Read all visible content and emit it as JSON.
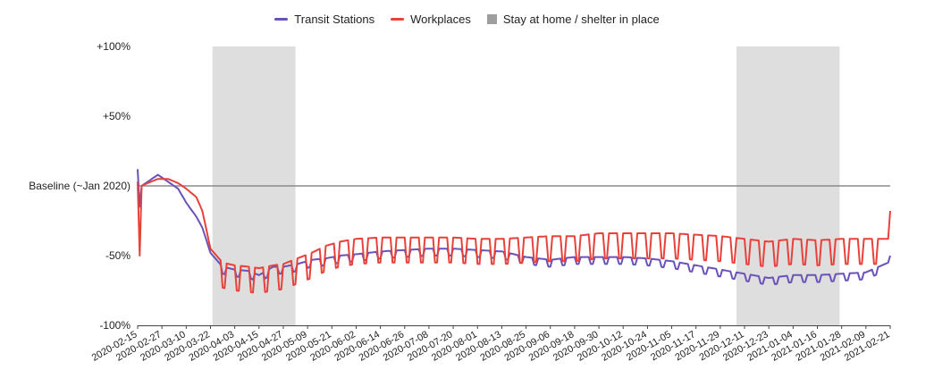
{
  "chart_data": {
    "type": "line",
    "title": "",
    "legend": {
      "placement": "top-center",
      "entries": [
        {
          "label": "Transit Stations",
          "kind": "line",
          "color": "#6a52b8"
        },
        {
          "label": "Workplaces",
          "kind": "line",
          "color": "#e8413a"
        },
        {
          "label": "Stay at home / shelter in place",
          "kind": "box",
          "color": "#9e9e9e"
        }
      ]
    },
    "y_axis": {
      "range": [
        -100,
        100
      ],
      "ticks": [
        {
          "value": 100,
          "label": "+100%"
        },
        {
          "value": 50,
          "label": "+50%"
        },
        {
          "value": 0,
          "label": "Baseline (~Jan 2020)"
        },
        {
          "value": -50,
          "label": "-50%"
        },
        {
          "value": -100,
          "label": "-100%"
        }
      ],
      "grid": false,
      "baseline_line": true
    },
    "x_axis": {
      "start": "2020-02-15",
      "end": "2021-02-21",
      "tick_labels": [
        "2020-02-15",
        "2020-02-27",
        "2020-03-10",
        "2020-03-22",
        "2020-04-03",
        "2020-04-15",
        "2020-04-27",
        "2020-05-09",
        "2020-05-21",
        "2020-06-02",
        "2020-06-14",
        "2020-06-26",
        "2020-07-08",
        "2020-07-20",
        "2020-08-01",
        "2020-08-13",
        "2020-08-25",
        "2020-09-06",
        "2020-09-18",
        "2020-09-30",
        "2020-10-12",
        "2020-10-24",
        "2020-11-05",
        "2020-11-17",
        "2020-11-29",
        "2020-12-11",
        "2020-12-23",
        "2021-01-04",
        "2021-01-16",
        "2021-01-28",
        "2021-02-09",
        "2021-02-21"
      ]
    },
    "shaded_periods": [
      {
        "label": "Stay at home / shelter in place",
        "start": "2020-03-23",
        "end": "2020-05-03"
      },
      {
        "label": "Stay at home / shelter in place",
        "start": "2020-12-07",
        "end": "2021-01-27"
      }
    ],
    "series": [
      {
        "name": "Transit Stations",
        "color": "#6a52b8",
        "weekly_pattern_note_omitted": true,
        "points": [
          [
            "2020-02-15",
            12
          ],
          [
            "2020-02-16",
            -15
          ],
          [
            "2020-02-17",
            0
          ],
          [
            "2020-02-20",
            3
          ],
          [
            "2020-02-25",
            8
          ],
          [
            "2020-03-01",
            3
          ],
          [
            "2020-03-06",
            -2
          ],
          [
            "2020-03-10",
            -12
          ],
          [
            "2020-03-15",
            -22
          ],
          [
            "2020-03-18",
            -30
          ],
          [
            "2020-03-22",
            -48
          ],
          [
            "2020-03-28",
            -58
          ],
          [
            "2020-04-03",
            -60
          ],
          [
            "2020-04-10",
            -61
          ],
          [
            "2020-04-15",
            -64
          ],
          [
            "2020-04-22",
            -58
          ],
          [
            "2020-04-27",
            -58
          ],
          [
            "2020-05-04",
            -56
          ],
          [
            "2020-05-11",
            -53
          ],
          [
            "2020-05-18",
            -52
          ],
          [
            "2020-05-25",
            -50
          ],
          [
            "2020-06-02",
            -49
          ],
          [
            "2020-06-14",
            -47
          ],
          [
            "2020-06-26",
            -46
          ],
          [
            "2020-07-08",
            -45
          ],
          [
            "2020-07-20",
            -45
          ],
          [
            "2020-08-01",
            -46
          ],
          [
            "2020-08-13",
            -47
          ],
          [
            "2020-08-25",
            -51
          ],
          [
            "2020-09-06",
            -53
          ],
          [
            "2020-09-18",
            -51
          ],
          [
            "2020-09-30",
            -51
          ],
          [
            "2020-10-12",
            -51
          ],
          [
            "2020-10-24",
            -52
          ],
          [
            "2020-11-05",
            -54
          ],
          [
            "2020-11-17",
            -57
          ],
          [
            "2020-11-29",
            -60
          ],
          [
            "2020-12-11",
            -63
          ],
          [
            "2020-12-23",
            -66
          ],
          [
            "2021-01-04",
            -64
          ],
          [
            "2021-01-16",
            -64
          ],
          [
            "2021-01-28",
            -63
          ],
          [
            "2021-02-09",
            -62
          ],
          [
            "2021-02-20",
            -55
          ],
          [
            "2021-02-21",
            -50
          ]
        ]
      },
      {
        "name": "Workplaces",
        "color": "#e8413a",
        "points": [
          [
            "2020-02-15",
            3
          ],
          [
            "2020-02-16",
            -50
          ],
          [
            "2020-02-17",
            0
          ],
          [
            "2020-02-20",
            2
          ],
          [
            "2020-02-25",
            5
          ],
          [
            "2020-03-01",
            5
          ],
          [
            "2020-03-06",
            2
          ],
          [
            "2020-03-10",
            -2
          ],
          [
            "2020-03-15",
            -8
          ],
          [
            "2020-03-18",
            -18
          ],
          [
            "2020-03-22",
            -45
          ],
          [
            "2020-03-28",
            -55
          ],
          [
            "2020-04-03",
            -57
          ],
          [
            "2020-04-10",
            -58
          ],
          [
            "2020-04-15",
            -59
          ],
          [
            "2020-04-22",
            -57
          ],
          [
            "2020-04-27",
            -56
          ],
          [
            "2020-05-04",
            -52
          ],
          [
            "2020-05-11",
            -48
          ],
          [
            "2020-05-18",
            -43
          ],
          [
            "2020-05-25",
            -40
          ],
          [
            "2020-06-02",
            -38
          ],
          [
            "2020-06-14",
            -37
          ],
          [
            "2020-06-26",
            -37
          ],
          [
            "2020-07-08",
            -37
          ],
          [
            "2020-07-20",
            -37
          ],
          [
            "2020-08-01",
            -38
          ],
          [
            "2020-08-13",
            -38
          ],
          [
            "2020-08-25",
            -37
          ],
          [
            "2020-09-06",
            -36
          ],
          [
            "2020-09-18",
            -36
          ],
          [
            "2020-09-30",
            -34
          ],
          [
            "2020-10-12",
            -34
          ],
          [
            "2020-10-24",
            -34
          ],
          [
            "2020-11-05",
            -34
          ],
          [
            "2020-11-17",
            -35
          ],
          [
            "2020-11-29",
            -36
          ],
          [
            "2020-12-11",
            -38
          ],
          [
            "2020-12-23",
            -40
          ],
          [
            "2021-01-04",
            -38
          ],
          [
            "2021-01-16",
            -39
          ],
          [
            "2021-01-28",
            -38
          ],
          [
            "2021-02-09",
            -38
          ],
          [
            "2021-02-20",
            -38
          ],
          [
            "2021-02-21",
            -18
          ]
        ]
      }
    ]
  }
}
